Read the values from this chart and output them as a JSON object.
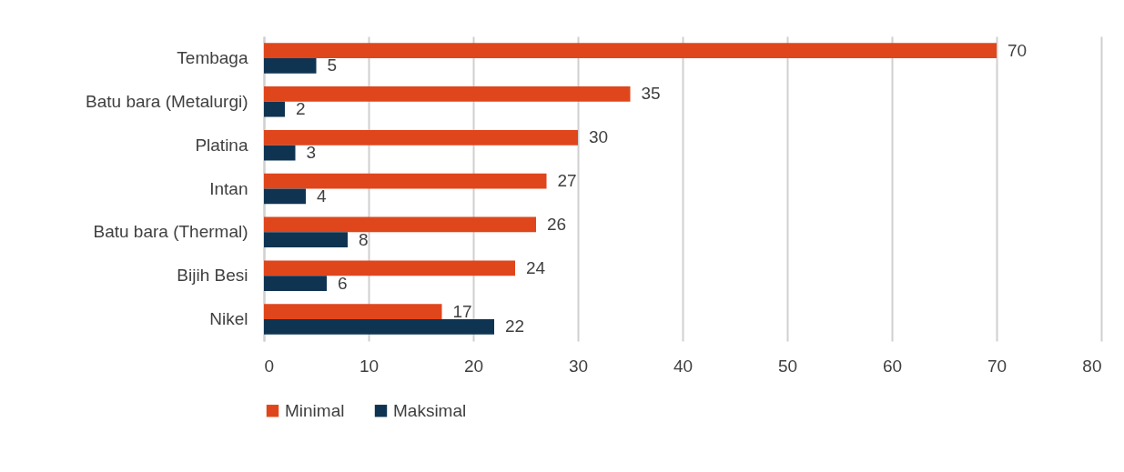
{
  "chart_data": {
    "type": "bar",
    "orientation": "horizontal",
    "categories": [
      "Tembaga",
      "Batu bara (Metalurgi)",
      "Platina",
      "Intan",
      "Batu bara (Thermal)",
      "Bijih Besi",
      "Nikel"
    ],
    "series": [
      {
        "name": "Minimal",
        "color": "#e0461c",
        "values": [
          70,
          35,
          30,
          27,
          26,
          24,
          17
        ]
      },
      {
        "name": "Maksimal",
        "color": "#0f3452",
        "values": [
          5,
          2,
          3,
          4,
          8,
          6,
          22
        ]
      }
    ],
    "xlim": [
      0,
      80
    ],
    "xticks": [
      0,
      10,
      20,
      30,
      40,
      50,
      60,
      70,
      80
    ],
    "grid": "x",
    "legend": "bottom",
    "data_labels": true
  }
}
